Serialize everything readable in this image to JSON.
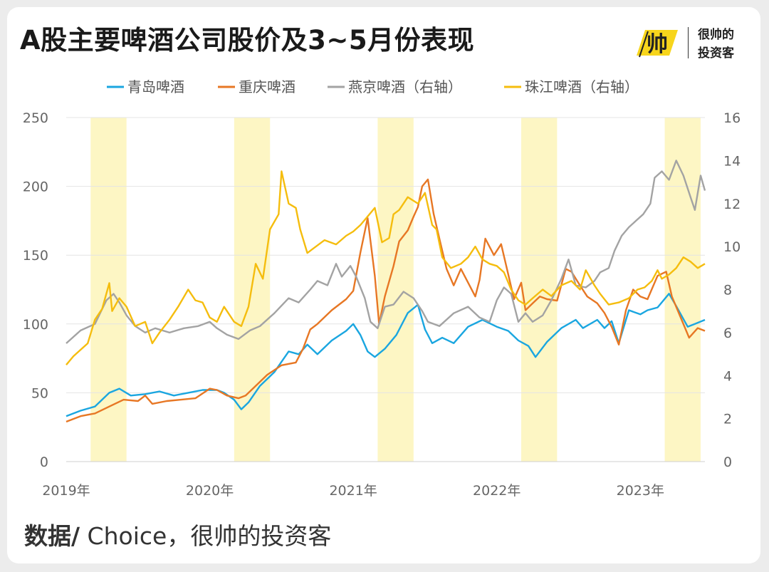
{
  "title": "A股主要啤酒公司股价及3~5月份表现",
  "logo": {
    "mark": "帅",
    "line1": "很帅的",
    "line2": "投资客"
  },
  "source": {
    "label": "数据/",
    "text": " Choice，很帅的投资客"
  },
  "colors": {
    "highlight": "#fdf6c4",
    "grid": "#e4e4e4"
  },
  "chart_data": {
    "type": "line",
    "x_ticks": [
      "2019年",
      "2020年",
      "2021年",
      "2022年",
      "2023年"
    ],
    "x_range": [
      2019.0,
      2023.45
    ],
    "y_left": {
      "range": [
        0,
        250
      ],
      "ticks": [
        0,
        50,
        100,
        150,
        200,
        250
      ]
    },
    "y_right": {
      "range": [
        0,
        16
      ],
      "ticks": [
        0,
        2,
        4,
        6,
        8,
        10,
        12,
        14,
        16
      ]
    },
    "shaded_periods": [
      [
        2019.17,
        2019.42
      ],
      [
        2020.17,
        2020.42
      ],
      [
        2021.17,
        2021.42
      ],
      [
        2022.17,
        2022.42
      ],
      [
        2023.17,
        2023.42
      ]
    ],
    "legend_position": "top",
    "series": [
      {
        "name": "青岛啤酒",
        "axis": "left",
        "color": "#1aa6e0",
        "points": [
          [
            2019.0,
            33
          ],
          [
            2019.1,
            37
          ],
          [
            2019.2,
            40
          ],
          [
            2019.3,
            50
          ],
          [
            2019.37,
            53
          ],
          [
            2019.45,
            48
          ],
          [
            2019.55,
            49
          ],
          [
            2019.65,
            51
          ],
          [
            2019.75,
            48
          ],
          [
            2019.85,
            50
          ],
          [
            2019.95,
            52
          ],
          [
            2020.0,
            52
          ],
          [
            2020.05,
            52
          ],
          [
            2020.1,
            50
          ],
          [
            2020.17,
            45
          ],
          [
            2020.22,
            38
          ],
          [
            2020.27,
            43
          ],
          [
            2020.35,
            55
          ],
          [
            2020.45,
            65
          ],
          [
            2020.55,
            80
          ],
          [
            2020.62,
            78
          ],
          [
            2020.68,
            85
          ],
          [
            2020.75,
            78
          ],
          [
            2020.85,
            88
          ],
          [
            2020.95,
            95
          ],
          [
            2021.0,
            100
          ],
          [
            2021.05,
            92
          ],
          [
            2021.1,
            80
          ],
          [
            2021.15,
            76
          ],
          [
            2021.22,
            82
          ],
          [
            2021.3,
            92
          ],
          [
            2021.38,
            108
          ],
          [
            2021.45,
            114
          ],
          [
            2021.5,
            96
          ],
          [
            2021.55,
            86
          ],
          [
            2021.62,
            90
          ],
          [
            2021.7,
            86
          ],
          [
            2021.8,
            98
          ],
          [
            2021.9,
            103
          ],
          [
            2022.0,
            98
          ],
          [
            2022.08,
            95
          ],
          [
            2022.15,
            88
          ],
          [
            2022.22,
            84
          ],
          [
            2022.27,
            76
          ],
          [
            2022.35,
            87
          ],
          [
            2022.45,
            97
          ],
          [
            2022.55,
            103
          ],
          [
            2022.6,
            97
          ],
          [
            2022.7,
            103
          ],
          [
            2022.75,
            97
          ],
          [
            2022.8,
            102
          ],
          [
            2022.85,
            86
          ],
          [
            2022.92,
            110
          ],
          [
            2023.0,
            107
          ],
          [
            2023.05,
            110
          ],
          [
            2023.12,
            112
          ],
          [
            2023.2,
            122
          ],
          [
            2023.25,
            113
          ],
          [
            2023.33,
            98
          ],
          [
            2023.38,
            100
          ],
          [
            2023.45,
            103
          ]
        ]
      },
      {
        "name": "重庆啤酒",
        "axis": "left",
        "color": "#e77724",
        "points": [
          [
            2019.0,
            29
          ],
          [
            2019.1,
            33
          ],
          [
            2019.2,
            35
          ],
          [
            2019.3,
            40
          ],
          [
            2019.4,
            45
          ],
          [
            2019.5,
            44
          ],
          [
            2019.55,
            48
          ],
          [
            2019.6,
            42
          ],
          [
            2019.7,
            44
          ],
          [
            2019.8,
            45
          ],
          [
            2019.9,
            46
          ],
          [
            2020.0,
            53
          ],
          [
            2020.05,
            52
          ],
          [
            2020.12,
            48
          ],
          [
            2020.2,
            46
          ],
          [
            2020.25,
            48
          ],
          [
            2020.32,
            55
          ],
          [
            2020.4,
            63
          ],
          [
            2020.5,
            70
          ],
          [
            2020.6,
            72
          ],
          [
            2020.65,
            82
          ],
          [
            2020.7,
            96
          ],
          [
            2020.75,
            100
          ],
          [
            2020.85,
            110
          ],
          [
            2020.95,
            118
          ],
          [
            2021.0,
            124
          ],
          [
            2021.05,
            152
          ],
          [
            2021.1,
            177
          ],
          [
            2021.15,
            135
          ],
          [
            2021.18,
            100
          ],
          [
            2021.22,
            120
          ],
          [
            2021.28,
            142
          ],
          [
            2021.32,
            160
          ],
          [
            2021.38,
            168
          ],
          [
            2021.42,
            178
          ],
          [
            2021.45,
            185
          ],
          [
            2021.48,
            200
          ],
          [
            2021.52,
            205
          ],
          [
            2021.56,
            180
          ],
          [
            2021.6,
            162
          ],
          [
            2021.65,
            140
          ],
          [
            2021.7,
            128
          ],
          [
            2021.75,
            140
          ],
          [
            2021.8,
            130
          ],
          [
            2021.85,
            120
          ],
          [
            2021.88,
            132
          ],
          [
            2021.92,
            162
          ],
          [
            2021.98,
            150
          ],
          [
            2022.03,
            158
          ],
          [
            2022.08,
            136
          ],
          [
            2022.12,
            118
          ],
          [
            2022.17,
            130
          ],
          [
            2022.2,
            110
          ],
          [
            2022.25,
            115
          ],
          [
            2022.3,
            120
          ],
          [
            2022.35,
            118
          ],
          [
            2022.42,
            117
          ],
          [
            2022.48,
            140
          ],
          [
            2022.52,
            138
          ],
          [
            2022.58,
            128
          ],
          [
            2022.63,
            120
          ],
          [
            2022.7,
            115
          ],
          [
            2022.75,
            108
          ],
          [
            2022.8,
            98
          ],
          [
            2022.85,
            85
          ],
          [
            2022.9,
            110
          ],
          [
            2022.95,
            125
          ],
          [
            2023.0,
            120
          ],
          [
            2023.05,
            118
          ],
          [
            2023.12,
            135
          ],
          [
            2023.18,
            138
          ],
          [
            2023.22,
            120
          ],
          [
            2023.28,
            105
          ],
          [
            2023.34,
            90
          ],
          [
            2023.4,
            97
          ],
          [
            2023.45,
            95
          ]
        ]
      },
      {
        "name": "燕京啤酒（右轴）",
        "axis": "right",
        "color": "#a3a3a3",
        "points": [
          [
            2019.0,
            5.5
          ],
          [
            2019.1,
            6.1
          ],
          [
            2019.2,
            6.4
          ],
          [
            2019.28,
            7.5
          ],
          [
            2019.33,
            7.8
          ],
          [
            2019.37,
            7.4
          ],
          [
            2019.42,
            6.8
          ],
          [
            2019.48,
            6.3
          ],
          [
            2019.55,
            6.0
          ],
          [
            2019.62,
            6.2
          ],
          [
            2019.72,
            6.0
          ],
          [
            2019.82,
            6.2
          ],
          [
            2019.92,
            6.3
          ],
          [
            2020.0,
            6.5
          ],
          [
            2020.05,
            6.2
          ],
          [
            2020.12,
            5.9
          ],
          [
            2020.2,
            5.7
          ],
          [
            2020.28,
            6.1
          ],
          [
            2020.35,
            6.3
          ],
          [
            2020.45,
            6.9
          ],
          [
            2020.55,
            7.6
          ],
          [
            2020.62,
            7.4
          ],
          [
            2020.7,
            8.0
          ],
          [
            2020.75,
            8.4
          ],
          [
            2020.82,
            8.2
          ],
          [
            2020.88,
            9.2
          ],
          [
            2020.92,
            8.6
          ],
          [
            2020.98,
            9.1
          ],
          [
            2021.02,
            8.6
          ],
          [
            2021.08,
            7.6
          ],
          [
            2021.12,
            6.5
          ],
          [
            2021.17,
            6.2
          ],
          [
            2021.22,
            7.2
          ],
          [
            2021.28,
            7.3
          ],
          [
            2021.35,
            7.9
          ],
          [
            2021.42,
            7.6
          ],
          [
            2021.48,
            7.0
          ],
          [
            2021.52,
            6.5
          ],
          [
            2021.6,
            6.3
          ],
          [
            2021.7,
            6.9
          ],
          [
            2021.8,
            7.2
          ],
          [
            2021.88,
            6.7
          ],
          [
            2021.95,
            6.5
          ],
          [
            2022.0,
            7.5
          ],
          [
            2022.05,
            8.1
          ],
          [
            2022.1,
            7.8
          ],
          [
            2022.15,
            6.5
          ],
          [
            2022.2,
            6.9
          ],
          [
            2022.25,
            6.5
          ],
          [
            2022.32,
            6.8
          ],
          [
            2022.38,
            7.5
          ],
          [
            2022.45,
            8.5
          ],
          [
            2022.5,
            9.4
          ],
          [
            2022.55,
            8.2
          ],
          [
            2022.62,
            8.1
          ],
          [
            2022.68,
            8.4
          ],
          [
            2022.72,
            8.8
          ],
          [
            2022.78,
            9.0
          ],
          [
            2022.82,
            9.8
          ],
          [
            2022.87,
            10.5
          ],
          [
            2022.92,
            10.9
          ],
          [
            2022.97,
            11.2
          ],
          [
            2023.02,
            11.5
          ],
          [
            2023.07,
            12.0
          ],
          [
            2023.1,
            13.2
          ],
          [
            2023.15,
            13.5
          ],
          [
            2023.2,
            13.1
          ],
          [
            2023.25,
            14.0
          ],
          [
            2023.3,
            13.3
          ],
          [
            2023.35,
            12.3
          ],
          [
            2023.38,
            11.7
          ],
          [
            2023.42,
            13.3
          ],
          [
            2023.45,
            12.6
          ]
        ]
      },
      {
        "name": "珠江啤酒（右轴）",
        "axis": "right",
        "color": "#f5bd0e",
        "points": [
          [
            2019.0,
            4.5
          ],
          [
            2019.05,
            4.9
          ],
          [
            2019.1,
            5.2
          ],
          [
            2019.15,
            5.5
          ],
          [
            2019.2,
            6.6
          ],
          [
            2019.25,
            7.1
          ],
          [
            2019.3,
            8.3
          ],
          [
            2019.32,
            7.0
          ],
          [
            2019.37,
            7.6
          ],
          [
            2019.42,
            7.2
          ],
          [
            2019.48,
            6.3
          ],
          [
            2019.55,
            6.5
          ],
          [
            2019.6,
            5.5
          ],
          [
            2019.65,
            6.0
          ],
          [
            2019.72,
            6.6
          ],
          [
            2019.78,
            7.2
          ],
          [
            2019.85,
            8.0
          ],
          [
            2019.9,
            7.5
          ],
          [
            2019.95,
            7.4
          ],
          [
            2020.0,
            6.7
          ],
          [
            2020.05,
            6.5
          ],
          [
            2020.1,
            7.2
          ],
          [
            2020.17,
            6.5
          ],
          [
            2020.22,
            6.3
          ],
          [
            2020.27,
            7.2
          ],
          [
            2020.32,
            9.2
          ],
          [
            2020.37,
            8.5
          ],
          [
            2020.42,
            10.8
          ],
          [
            2020.48,
            11.5
          ],
          [
            2020.5,
            13.5
          ],
          [
            2020.55,
            12.0
          ],
          [
            2020.6,
            11.8
          ],
          [
            2020.63,
            10.8
          ],
          [
            2020.68,
            9.7
          ],
          [
            2020.72,
            9.9
          ],
          [
            2020.8,
            10.3
          ],
          [
            2020.88,
            10.1
          ],
          [
            2020.95,
            10.5
          ],
          [
            2021.0,
            10.7
          ],
          [
            2021.05,
            11.0
          ],
          [
            2021.1,
            11.4
          ],
          [
            2021.15,
            11.8
          ],
          [
            2021.2,
            10.2
          ],
          [
            2021.25,
            10.4
          ],
          [
            2021.28,
            11.5
          ],
          [
            2021.32,
            11.7
          ],
          [
            2021.38,
            12.3
          ],
          [
            2021.45,
            12.0
          ],
          [
            2021.5,
            12.5
          ],
          [
            2021.55,
            11.0
          ],
          [
            2021.58,
            10.8
          ],
          [
            2021.62,
            9.5
          ],
          [
            2021.68,
            9.0
          ],
          [
            2021.75,
            9.2
          ],
          [
            2021.8,
            9.5
          ],
          [
            2021.85,
            10.0
          ],
          [
            2021.9,
            9.4
          ],
          [
            2021.95,
            9.2
          ],
          [
            2022.0,
            9.1
          ],
          [
            2022.05,
            8.8
          ],
          [
            2022.1,
            8.0
          ],
          [
            2022.15,
            7.5
          ],
          [
            2022.2,
            7.3
          ],
          [
            2022.25,
            7.6
          ],
          [
            2022.32,
            8.0
          ],
          [
            2022.38,
            7.7
          ],
          [
            2022.45,
            8.2
          ],
          [
            2022.52,
            8.4
          ],
          [
            2022.58,
            8.0
          ],
          [
            2022.62,
            8.9
          ],
          [
            2022.68,
            8.2
          ],
          [
            2022.72,
            7.8
          ],
          [
            2022.78,
            7.3
          ],
          [
            2022.85,
            7.4
          ],
          [
            2022.92,
            7.6
          ],
          [
            2022.98,
            8.0
          ],
          [
            2023.03,
            8.1
          ],
          [
            2023.08,
            8.4
          ],
          [
            2023.12,
            8.9
          ],
          [
            2023.15,
            8.5
          ],
          [
            2023.2,
            8.7
          ],
          [
            2023.25,
            9.0
          ],
          [
            2023.3,
            9.5
          ],
          [
            2023.35,
            9.3
          ],
          [
            2023.4,
            9.0
          ],
          [
            2023.45,
            9.2
          ]
        ]
      }
    ]
  }
}
